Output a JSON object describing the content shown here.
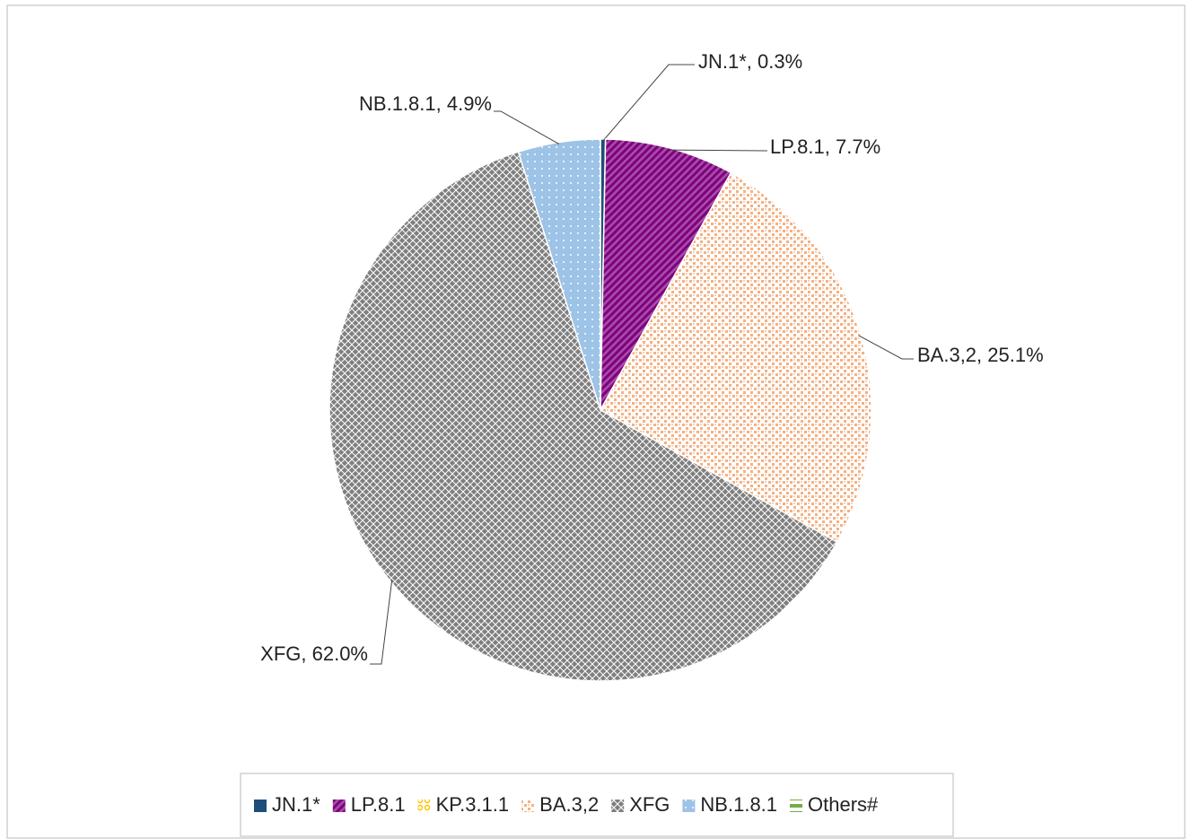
{
  "chart_data": {
    "type": "pie",
    "categories": [
      "JN.1*",
      "LP.8.1",
      "KP.3.1.1",
      "BA.3,2",
      "XFG",
      "NB.1.8.1",
      "Others#"
    ],
    "values": [
      0.3,
      7.7,
      0,
      25.1,
      62.0,
      4.9,
      0
    ],
    "value_labels": [
      "JN.1*, 0.3%",
      "LP.8.1, 7.7%",
      null,
      "BA.3,2, 25.1%",
      "XFG, 62.0%",
      "NB.1.8.1, 4.9%",
      null
    ],
    "colors": [
      "#1f4e79",
      "#7f007f",
      "#ffc000",
      "#f4b183",
      "#7f7f7f",
      "#9dc3e6",
      "#70ad47"
    ],
    "legend": "bottom"
  }
}
